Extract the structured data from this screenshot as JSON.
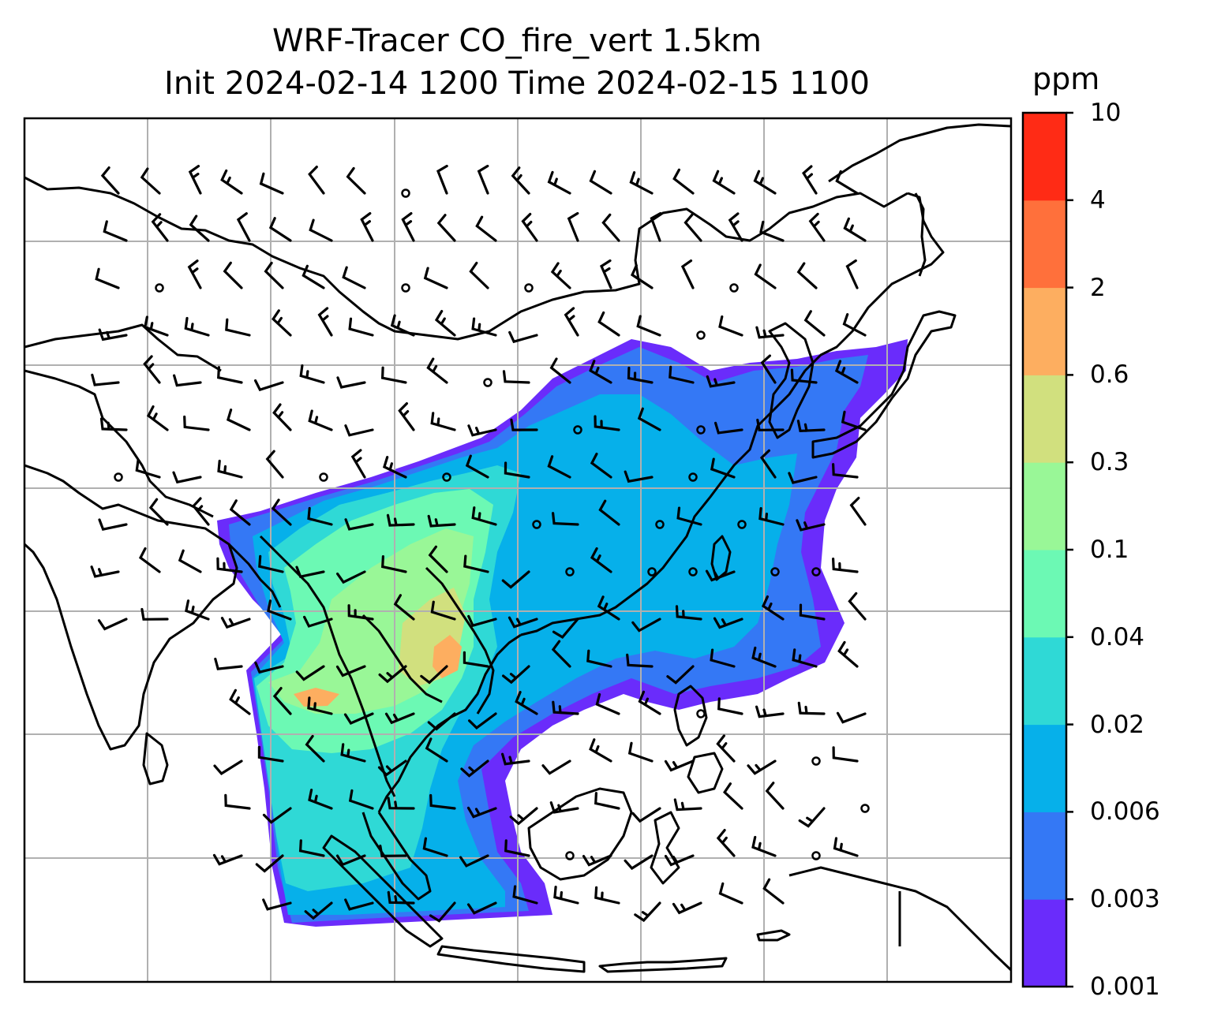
{
  "title": {
    "line1": "WRF-Tracer CO_fire_vert 1.5km",
    "line2": "Init 2024-02-14 1200 Time 2024-02-15 1100"
  },
  "colorbar": {
    "unit": "ppm",
    "levels": [
      "0.001",
      "0.003",
      "0.006",
      "0.02",
      "0.04",
      "0.1",
      "0.3",
      "0.6",
      "2",
      "4",
      "10"
    ],
    "colors": [
      "#6a2cfb",
      "#3478f5",
      "#06b0ea",
      "#2fd9d6",
      "#6cf9b4",
      "#99f797",
      "#d1e07e",
      "#fdae60",
      "#ff703b",
      "#ff2b15"
    ]
  },
  "map": {
    "gridlines": true,
    "background": "#ffffff",
    "coastline_color": "#000000",
    "wind_barb_color": "#000000"
  }
}
